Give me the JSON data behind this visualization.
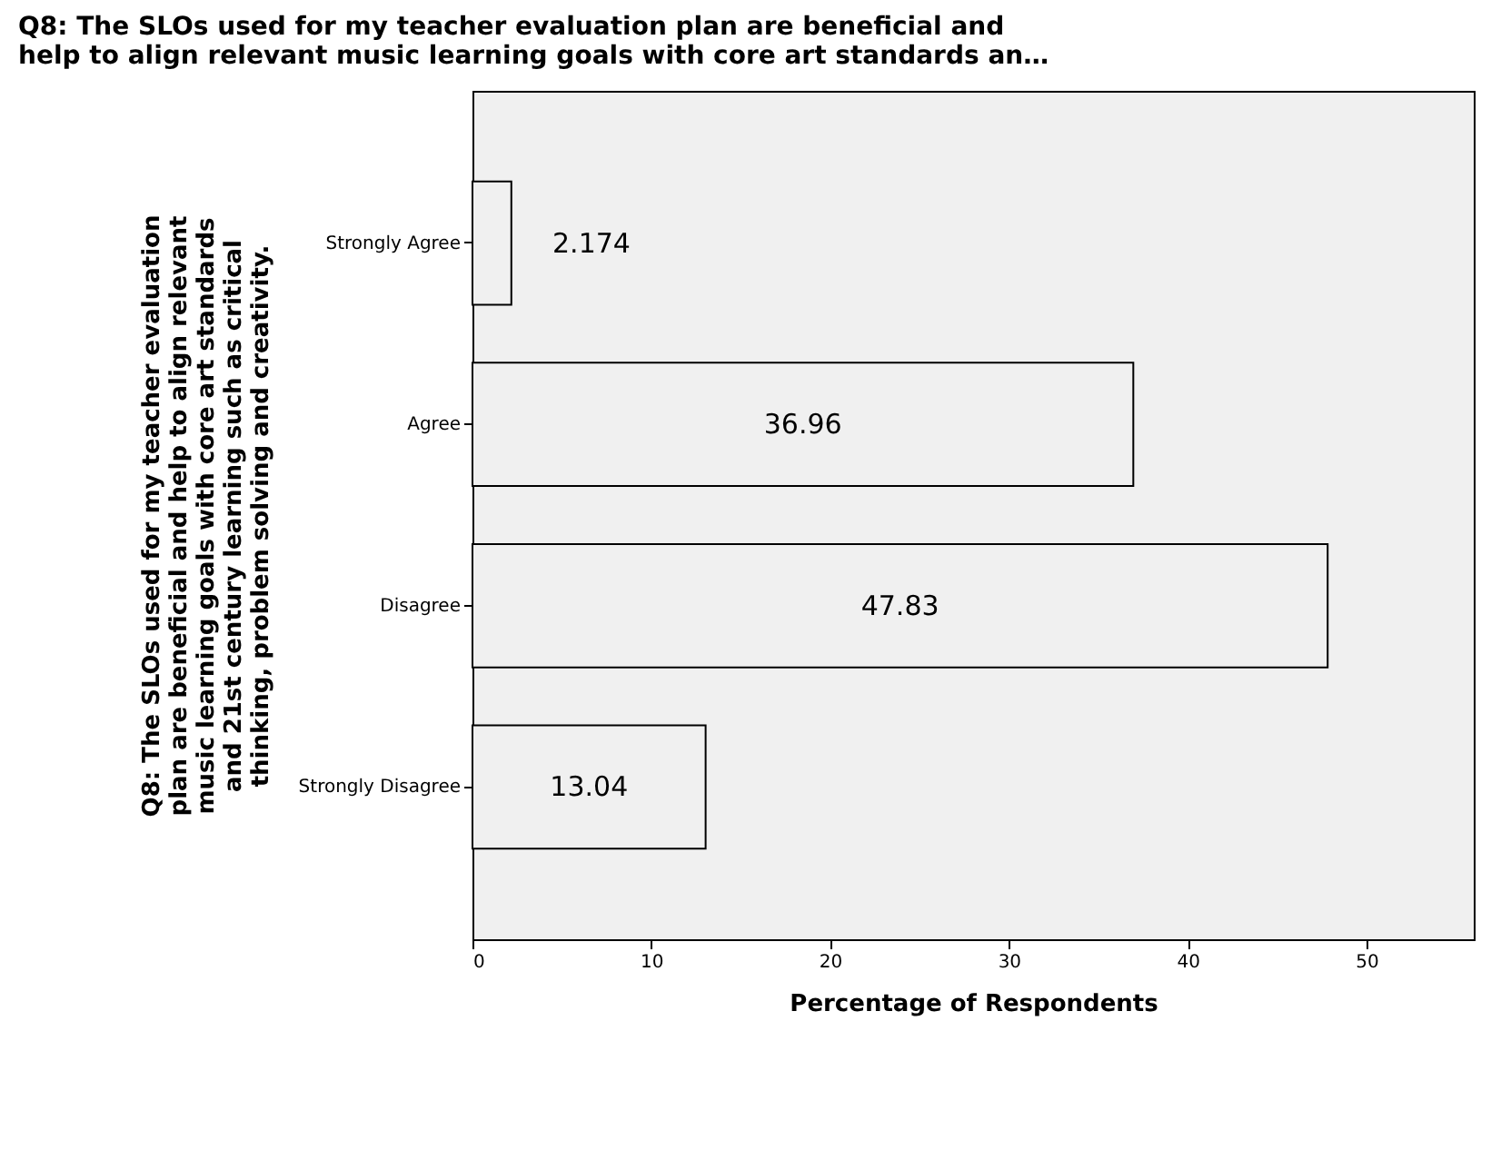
{
  "chart_data": {
    "type": "bar",
    "orientation": "horizontal",
    "title": "Q8: The SLOs used for my teacher evaluation plan are beneficial and\nhelp to align relevant music learning goals with core art standards an…",
    "xlabel": "Percentage of Respondents",
    "ylabel": "Q8: The SLOs used for my teacher evaluation\nplan are beneficial and help to align relevant\nmusic learning goals with core art standards\nand 21st century learning such as critical\nthinking, problem solving and creativity.",
    "categories": [
      "Strongly Agree",
      "Agree",
      "Disagree",
      "Strongly Disagree"
    ],
    "values": [
      2.174,
      36.96,
      47.83,
      13.04
    ],
    "color": "#f0f0f0",
    "data_labels": true,
    "xlim": [
      0,
      56
    ],
    "xticks": [
      0,
      10,
      20,
      30,
      40,
      50
    ],
    "grid": false
  }
}
